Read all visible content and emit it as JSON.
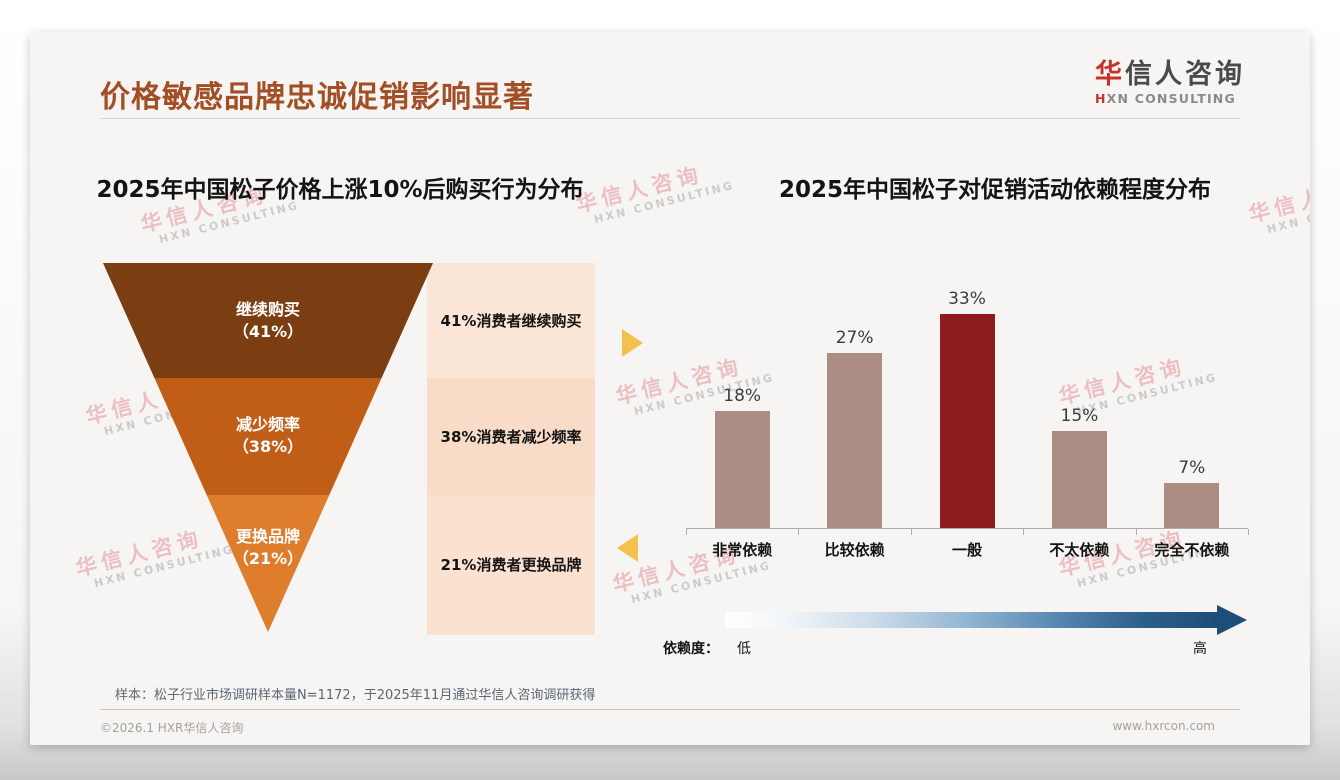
{
  "page": {
    "title": "价格敏感品牌忠诚促销影响显著",
    "logo": {
      "cn_first": "华",
      "cn_rest": "信人咨询",
      "en_first": "H",
      "en_rest": "XN CONSULTING"
    },
    "watermark": {
      "line1": "华信人咨询",
      "line2": "HXN CONSULTING"
    },
    "footer": {
      "note": "样本：松子行业市场调研样本量N=1172，于2025年11月通过华信人咨询调研获得",
      "copyright": "©2026.1 HXR华信人咨询",
      "website": "www.hxrcon.com"
    },
    "colors": {
      "title_accent": "#a24f26",
      "logo_red": "#c5342b",
      "gold_arrow": "#f2c14e"
    }
  },
  "chart_data": [
    {
      "type": "funnel",
      "title": "2025年中国松子价格上涨10%后购买行为分布",
      "categories": [
        "继续购买",
        "减少频率",
        "更换品牌"
      ],
      "values": [
        41,
        38,
        21
      ],
      "value_labels": [
        "（41%）",
        "（38%）",
        "（21%）"
      ],
      "annotations": [
        "41%消费者继续购买",
        "38%消费者减少频率",
        "21%消费者更换品牌"
      ],
      "segment_colors": [
        "#7b3d12",
        "#c05e17",
        "#de7d2c"
      ],
      "annotation_row_colors": [
        "#fbe5d6",
        "#f8dcc8",
        "#fae1d0"
      ]
    },
    {
      "type": "bar",
      "title": "2025年中国松子对促销活动依赖程度分布",
      "categories": [
        "非常依赖",
        "比较依赖",
        "一般",
        "不太依赖",
        "完全不依赖"
      ],
      "values": [
        18,
        27,
        33,
        15,
        7
      ],
      "value_labels": [
        "18%",
        "27%",
        "33%",
        "15%",
        "7%"
      ],
      "highlight_index": 2,
      "bar_color": "#ac8d84",
      "highlight_color": "#8e1c1c",
      "ylim": [
        0,
        35
      ],
      "grid": false,
      "legend_arrow": {
        "label": "依赖度：",
        "low": "低",
        "high": "高",
        "gradient_start": "#ffffff",
        "gradient_end": "#1e4e78"
      }
    }
  ]
}
